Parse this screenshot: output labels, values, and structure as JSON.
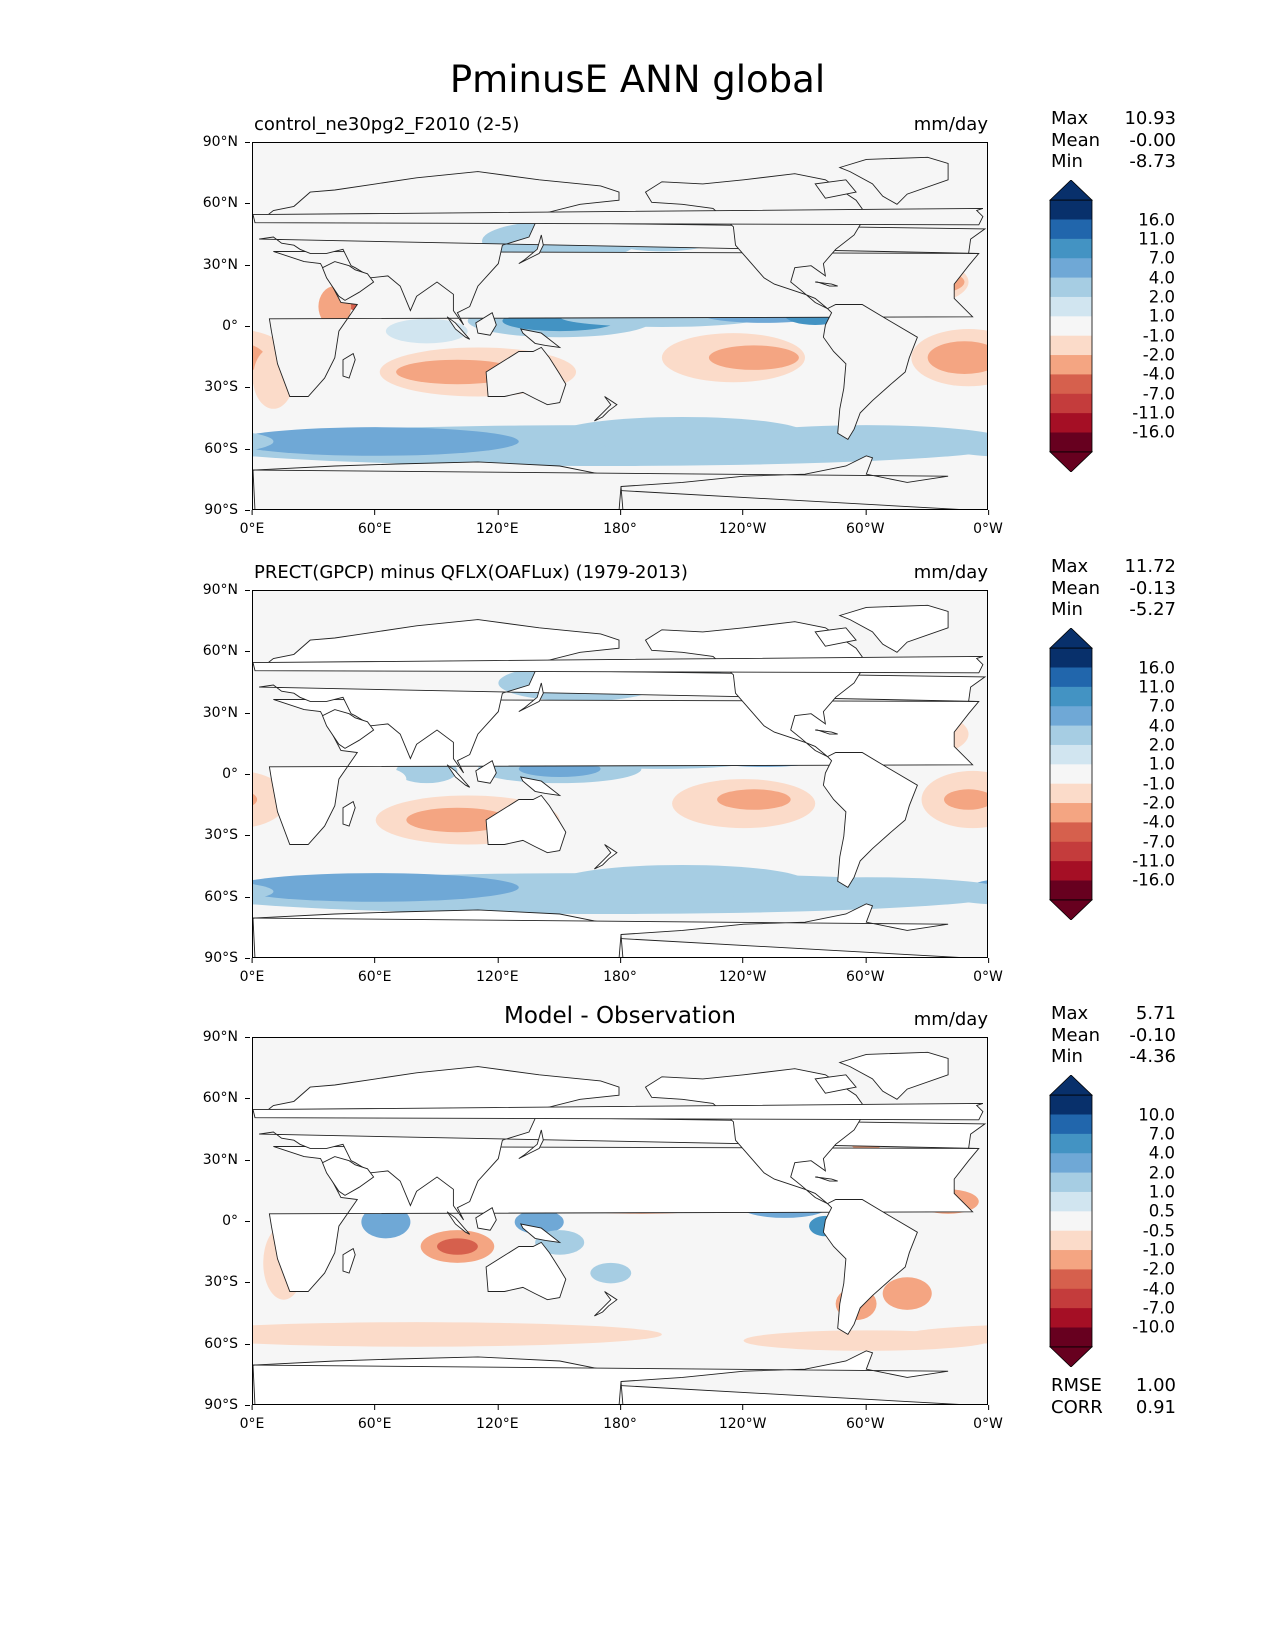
{
  "title": "PminusE ANN global",
  "lat_ticks": [
    "90°N",
    "60°N",
    "30°N",
    "0°",
    "30°S",
    "60°S",
    "90°S"
  ],
  "lon_ticks": [
    "0°E",
    "60°E",
    "120°E",
    "180°",
    "120°W",
    "60°W",
    "0°W"
  ],
  "panels": [
    {
      "title_left": "control_ne30pg2_F2010 (2-5)",
      "title_center": "",
      "units": "mm/day",
      "stats": [
        {
          "label": "Max",
          "value": "10.93"
        },
        {
          "label": "Mean",
          "value": "-0.00"
        },
        {
          "label": "Min",
          "value": "-8.73"
        }
      ],
      "levels": [
        "16.0",
        "11.0",
        "7.0",
        "4.0",
        "2.0",
        "1.0",
        "-1.0",
        "-2.0",
        "-4.0",
        "-7.0",
        "-11.0",
        "-16.0"
      ],
      "extra_stats": []
    },
    {
      "title_left": "PRECT(GPCP) minus QFLX(OAFLux) (1979-2013)",
      "title_center": "",
      "units": "mm/day",
      "stats": [
        {
          "label": "Max",
          "value": "11.72"
        },
        {
          "label": "Mean",
          "value": "-0.13"
        },
        {
          "label": "Min",
          "value": "-5.27"
        }
      ],
      "levels": [
        "16.0",
        "11.0",
        "7.0",
        "4.0",
        "2.0",
        "1.0",
        "-1.0",
        "-2.0",
        "-4.0",
        "-7.0",
        "-11.0",
        "-16.0"
      ],
      "extra_stats": []
    },
    {
      "title_left": "",
      "title_center": "Model - Observation",
      "units": "mm/day",
      "stats": [
        {
          "label": "Max",
          "value": "5.71"
        },
        {
          "label": "Mean",
          "value": "-0.10"
        },
        {
          "label": "Min",
          "value": "-4.36"
        }
      ],
      "levels": [
        "10.0",
        "7.0",
        "4.0",
        "2.0",
        "1.0",
        "0.5",
        "-0.5",
        "-1.0",
        "-2.0",
        "-4.0",
        "-7.0",
        "-10.0"
      ],
      "extra_stats": [
        {
          "label": "RMSE",
          "value": "1.00"
        },
        {
          "label": "CORR",
          "value": "0.91"
        }
      ]
    }
  ],
  "colors": {
    "scale": [
      "#08306b",
      "#2166ac",
      "#4393c3",
      "#6fa8d6",
      "#a6cde3",
      "#d1e5f0",
      "#f6f6f6",
      "#fbdbc9",
      "#f4a582",
      "#d6604d",
      "#c43c3c",
      "#a50f25",
      "#67001f"
    ],
    "map_background": "#f6f6f6",
    "coastline": "#222222"
  }
}
